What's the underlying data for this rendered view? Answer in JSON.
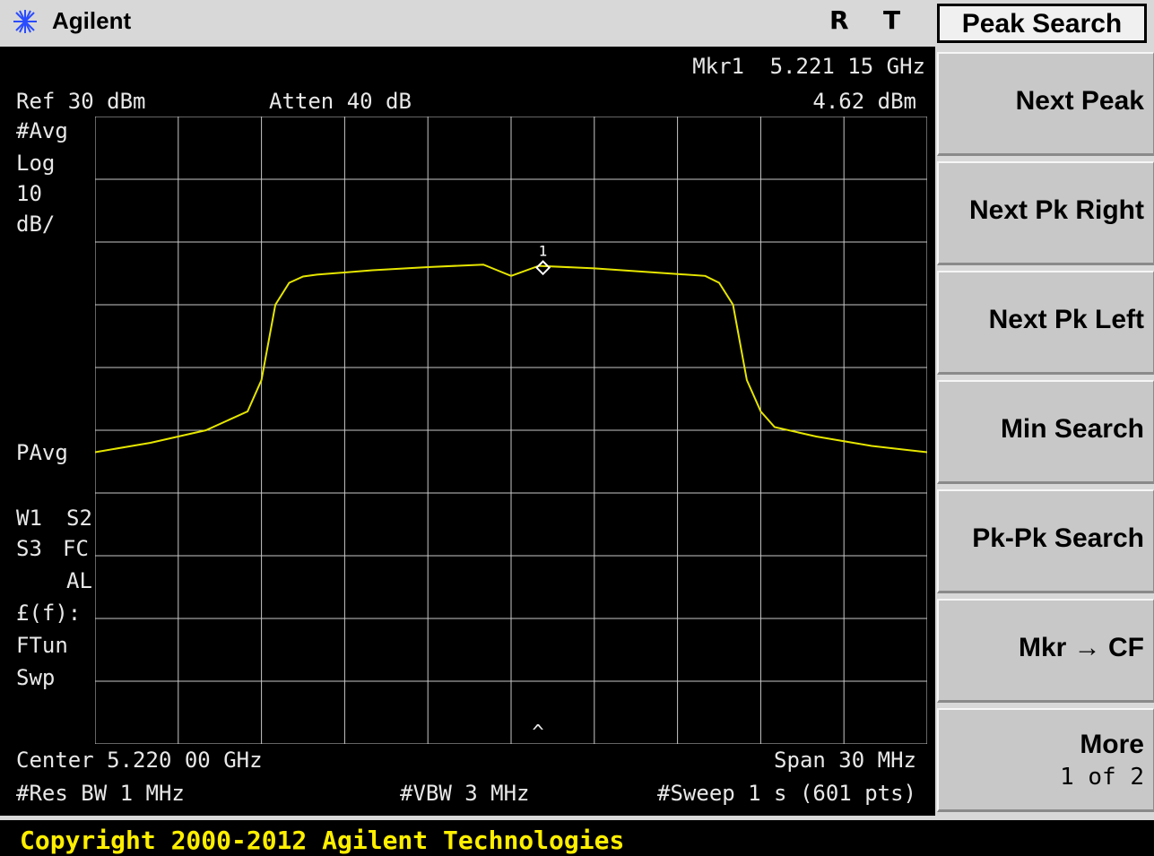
{
  "header": {
    "brand": "Agilent",
    "indicator_r": "R",
    "indicator_t": "T"
  },
  "annotations": {
    "marker_label": "Mkr1",
    "marker_freq": "5.221 15 GHz",
    "marker_ampl": "4.62 dBm",
    "ref_level": "Ref 30 dBm",
    "attenuation": "Atten 40 dB",
    "avg": "#Avg",
    "scale_type": "Log",
    "scale_value": "10",
    "scale_unit": "dB/",
    "pavg": "PAvg",
    "w1": "W1",
    "s2": "S2",
    "s3": "S3",
    "fc": "FC",
    "al": "AL",
    "func": "£(f):",
    "ftun": "FTun",
    "swp": "Swp",
    "center": "Center 5.220 00 GHz",
    "span": "Span 30 MHz",
    "res_bw": "#Res BW 1 MHz",
    "vbw": "#VBW 3 MHz",
    "sweep": "#Sweep 1 s (601 pts)",
    "marker_number": "1",
    "caret": "^"
  },
  "menu": {
    "title": "Peak Search",
    "keys": [
      {
        "label": "Next Peak"
      },
      {
        "label": "Next Pk Right"
      },
      {
        "label": "Next Pk Left"
      },
      {
        "label": "Min Search"
      },
      {
        "label": "Pk-Pk Search"
      },
      {
        "label": "Mkr → CF"
      },
      {
        "label": "More",
        "sub": "1 of 2"
      }
    ]
  },
  "status": {
    "copyright": "Copyright 2000-2012 Agilent Technologies"
  },
  "colors": {
    "trace": "#e6e600",
    "grid": "#c8c8c8",
    "status_text": "#ffef00"
  },
  "chart_data": {
    "type": "line",
    "x_center_ghz": 5.22,
    "x_span_mhz": 30,
    "ref_level_dbm": 30,
    "y_scale_db_per_div": 10,
    "x_offset_mhz": [
      -15,
      -13,
      -11,
      -9.5,
      -9.0,
      -8.5,
      -8.0,
      -7.5,
      -7.0,
      -5,
      -3,
      -1,
      -0.5,
      0,
      1,
      3,
      5,
      7.0,
      7.5,
      8.0,
      8.5,
      9.0,
      9.5,
      11,
      13,
      15
    ],
    "trace_dbm": [
      -23.5,
      -22.0,
      -20.0,
      -17.0,
      -12.0,
      0.0,
      3.5,
      4.5,
      4.8,
      5.5,
      6.0,
      6.4,
      5.5,
      4.6,
      6.2,
      5.8,
      5.2,
      4.6,
      3.5,
      0.0,
      -12.0,
      -17.0,
      -19.5,
      -21.0,
      -22.5,
      -23.5
    ],
    "marker": {
      "number": "1",
      "x_offset_mhz": 1.15,
      "y_dbm": 4.62
    },
    "grid": true,
    "x_divisions": 10,
    "y_divisions": 10
  }
}
